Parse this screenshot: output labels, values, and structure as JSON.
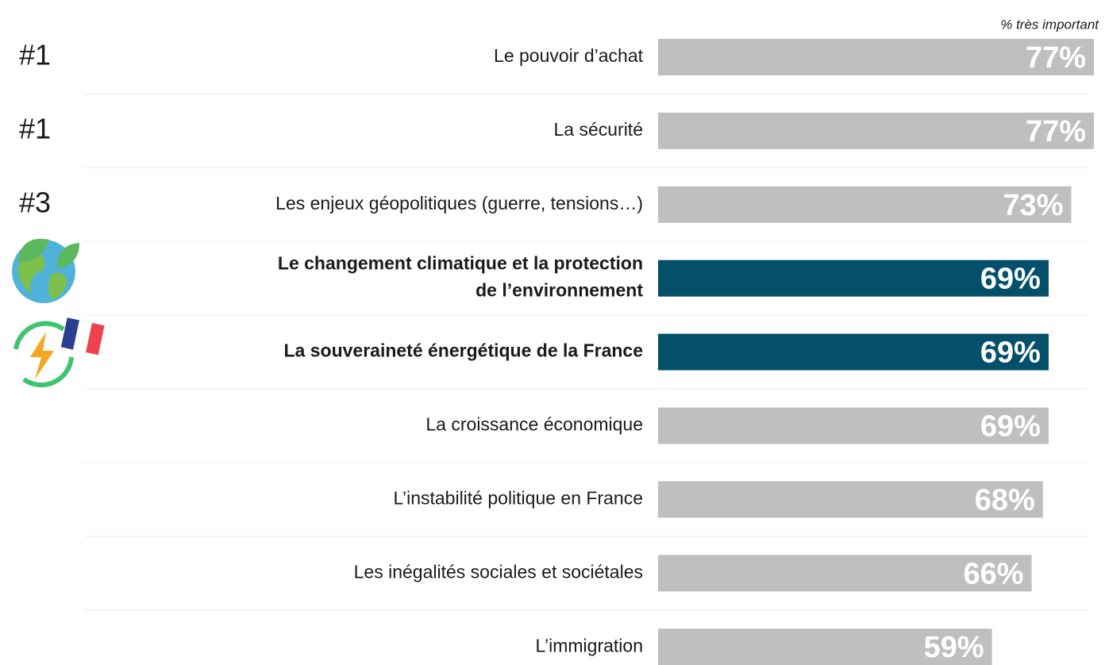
{
  "chart_data": {
    "type": "bar",
    "orientation": "horizontal",
    "subtitle": "% très important",
    "categories": [
      "Le pouvoir d’achat",
      "La sécurité",
      "Les enjeux géopolitiques (guerre, tensions…)",
      "Le changement climatique et la protection\nde l’environnement",
      "La souveraineté énergétique de la France",
      "La croissance économique",
      "L’instabilité politique en France",
      "Les inégalités sociales et sociétales",
      "L’immigration"
    ],
    "ranks": [
      "#1",
      "#1",
      "#3",
      null,
      null,
      null,
      null,
      null,
      null
    ],
    "values": [
      77,
      77,
      73,
      69,
      69,
      69,
      68,
      66,
      59
    ],
    "value_labels": [
      "77%",
      "77%",
      "73%",
      "69%",
      "69%",
      "69%",
      "68%",
      "66%",
      "59%"
    ],
    "color": "#bfbfbf",
    "highlight_color": "#04506b",
    "highlight": [
      3,
      4
    ]
  }
}
